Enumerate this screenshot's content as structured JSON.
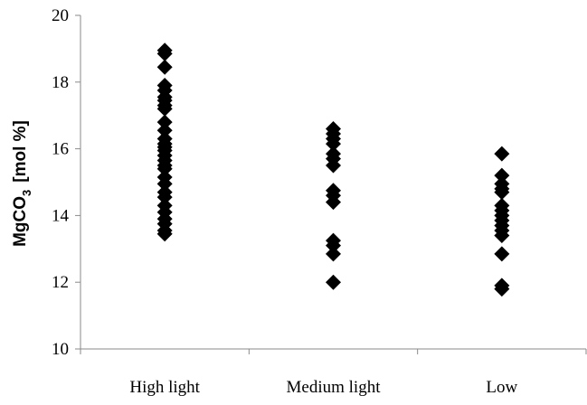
{
  "chart_data": {
    "type": "scatter",
    "ylabel": {
      "main": "MgCO",
      "subscript": "3",
      "unit": "[mol %]"
    },
    "ylim": [
      10,
      20
    ],
    "yticks": [
      "10",
      "12",
      "14",
      "16",
      "18",
      "20"
    ],
    "grid": false,
    "marker": "diamond",
    "marker_color": "#000000",
    "categories": [
      "High light",
      "Medium light",
      "Low"
    ],
    "series": [
      {
        "category": "High light",
        "values": [
          18.95,
          18.85,
          18.45,
          17.9,
          17.75,
          17.55,
          17.45,
          17.3,
          17.2,
          16.8,
          16.55,
          16.3,
          16.15,
          16.05,
          15.95,
          15.8,
          15.65,
          15.5,
          15.4,
          15.15,
          14.95,
          14.7,
          14.55,
          14.3,
          14.1,
          13.9,
          13.75,
          13.55,
          13.45
        ]
      },
      {
        "category": "Medium light",
        "values": [
          16.6,
          16.45,
          16.3,
          16.15,
          15.85,
          15.7,
          15.5,
          14.75,
          14.6,
          14.4,
          13.25,
          13.1,
          12.85,
          12.0
        ]
      },
      {
        "category": "Low",
        "values": [
          15.85,
          15.2,
          14.95,
          14.8,
          14.7,
          14.3,
          14.15,
          14.0,
          13.85,
          13.7,
          13.55,
          13.4,
          12.85,
          11.9,
          11.8
        ]
      }
    ]
  }
}
